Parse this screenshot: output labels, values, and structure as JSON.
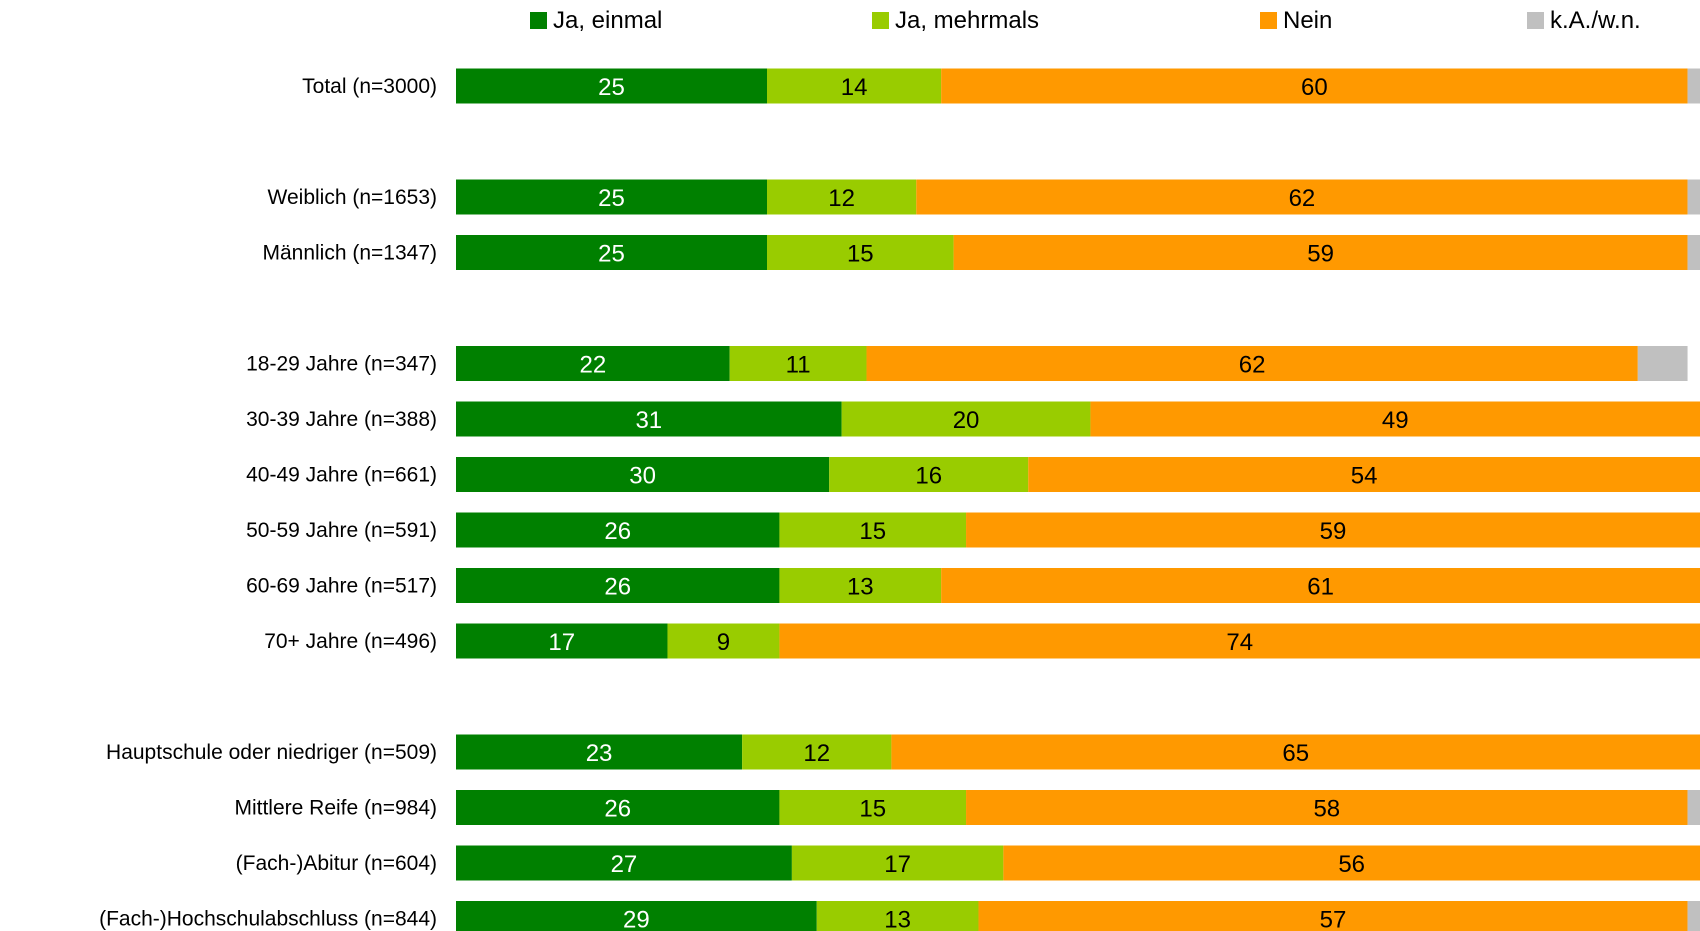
{
  "chart_data": {
    "type": "bar",
    "orientation": "horizontal",
    "stacked": true,
    "unit": "percent",
    "title": "",
    "xlabel": "",
    "ylabel": "",
    "xlim": [
      0,
      100
    ],
    "grid": false,
    "legend_position": "top",
    "categories": [
      "Total (n=3000)",
      "Weiblich (n=1653)",
      "Männlich (n=1347)",
      "18-29 Jahre (n=347)",
      "30-39 Jahre (n=388)",
      "40-49 Jahre (n=661)",
      "50-59 Jahre (n=591)",
      "60-69 Jahre (n=517)",
      "70+ Jahre (n=496)",
      "Hauptschule oder niedriger (n=509)",
      "Mittlere Reife (n=984)",
      "(Fach-)Abitur (n=604)",
      "(Fach-)Hochschulabschluss (n=844)"
    ],
    "groups": [
      [
        0
      ],
      [
        1,
        2
      ],
      [
        3,
        4,
        5,
        6,
        7,
        8
      ],
      [
        9,
        10,
        11,
        12
      ]
    ],
    "series": [
      {
        "name": "Ja, einmal",
        "color": "#008000",
        "label_color": "#ffffff",
        "values": [
          25,
          25,
          25,
          22,
          31,
          30,
          26,
          26,
          17,
          23,
          26,
          27,
          29
        ]
      },
      {
        "name": "Ja, mehrmals",
        "color": "#99cc00",
        "label_color": "#000000",
        "values": [
          14,
          12,
          15,
          11,
          20,
          16,
          15,
          13,
          9,
          12,
          15,
          17,
          13
        ]
      },
      {
        "name": "Nein",
        "color": "#ff9900",
        "label_color": "#000000",
        "values": [
          60,
          62,
          59,
          62,
          49,
          54,
          59,
          61,
          74,
          65,
          58,
          56,
          57
        ]
      },
      {
        "name": "k.A./w.n.",
        "color": "#c0c0c0",
        "label_color": "#000000",
        "values": [
          1,
          1,
          1,
          4,
          0,
          0,
          0,
          0,
          0,
          0,
          1,
          0,
          1
        ],
        "show_labels": false
      }
    ]
  }
}
